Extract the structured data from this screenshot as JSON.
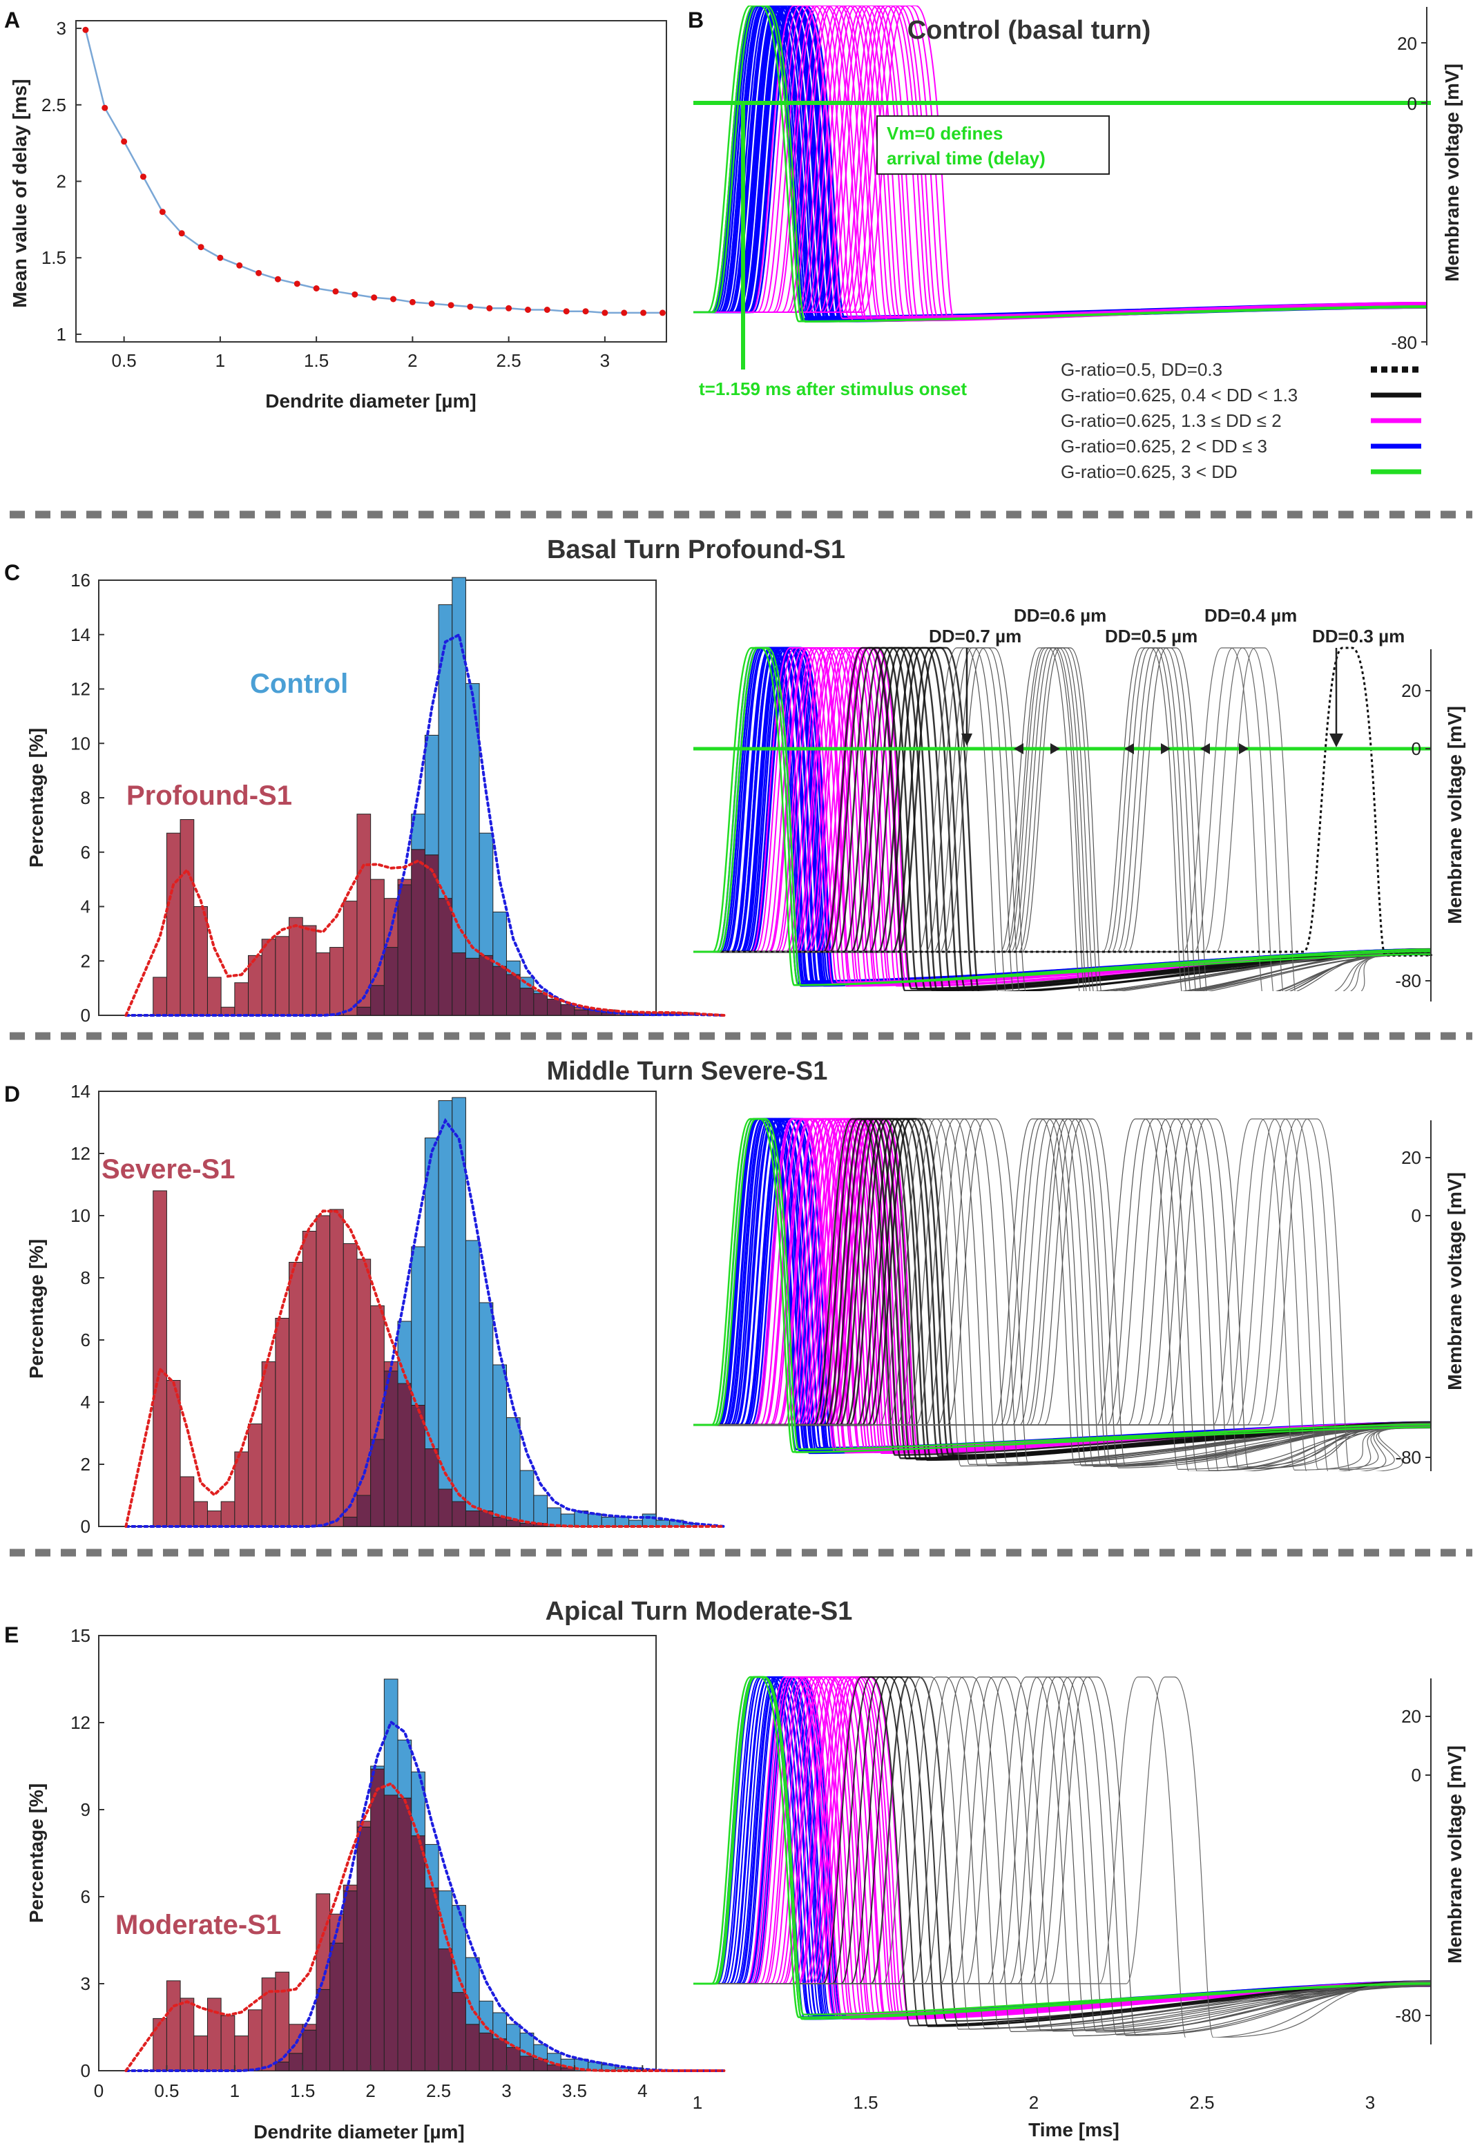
{
  "colors": {
    "control": "#4a9fd5",
    "s1": "#b5495b",
    "overlap": "#6e2a4e",
    "green": "#22dd22",
    "magenta": "#ff00ff",
    "blue": "#0000ff",
    "black": "#111111"
  },
  "panelA": {
    "label": "A",
    "xlabel": "Dendrite diameter [µm]",
    "ylabel": "Mean value of delay [ms]",
    "xticks": [
      "0.5",
      "1",
      "1.5",
      "2",
      "2.5",
      "3"
    ],
    "yticks": [
      "1",
      "1.5",
      "2",
      "2.5",
      "3"
    ]
  },
  "panelB": {
    "label": "B",
    "title": "Control (basal turn)",
    "ylabel": "Membrane voltage [mV]",
    "yticks": [
      "20",
      "0",
      "-80"
    ],
    "box_line1": "Vm=0 defines",
    "box_line2": "arrival time (delay)",
    "arrival": "t=1.159 ms after stimulus onset",
    "legend": [
      {
        "label": "G-ratio=0.5,      DD=0.3",
        "color": "#111111",
        "style": "dotted"
      },
      {
        "label": "G-ratio=0.625, 0.4 < DD < 1.3",
        "color": "#111111",
        "style": "solid"
      },
      {
        "label": "G-ratio=0.625, 1.3 ≤ DD ≤ 2",
        "color": "#ff00ff",
        "style": "solid"
      },
      {
        "label": "G-ratio=0.625, 2 < DD ≤ 3",
        "color": "#0000ff",
        "style": "solid"
      },
      {
        "label": "G-ratio=0.625, 3 < DD",
        "color": "#22dd22",
        "style": "solid"
      }
    ]
  },
  "panelC": {
    "label": "C",
    "title": "Basal Turn  Profound-S1",
    "ylabel": "Percentage [%]",
    "yticks": [
      "0",
      "2",
      "4",
      "6",
      "8",
      "10",
      "12",
      "14",
      "16"
    ],
    "control_label": "Control",
    "s1_label": "Profound-S1",
    "trace_ylabel": "Membrane voltage [mV]",
    "trace_yticks": [
      "20",
      "0",
      "-80"
    ],
    "dd": [
      "DD=0.7 µm",
      "DD=0.6 µm",
      "DD=0.5 µm",
      "DD=0.4 µm",
      "DD=0.3 µm"
    ]
  },
  "panelD": {
    "label": "D",
    "title": "Middle Turn  Severe-S1",
    "ylabel": "Percentage [%]",
    "yticks": [
      "0",
      "2",
      "4",
      "6",
      "8",
      "10",
      "12",
      "14"
    ],
    "s1_label": "Severe-S1",
    "trace_ylabel": "Membrane voltage [mV]",
    "trace_yticks": [
      "20",
      "0",
      "-80"
    ]
  },
  "panelE": {
    "label": "E",
    "title": "Apical Turn  Moderate-S1",
    "ylabel": "Percentage [%]",
    "yticks": [
      "0",
      "3",
      "6",
      "9",
      "12",
      "15"
    ],
    "s1_label": "Moderate-S1",
    "trace_ylabel": "Membrane voltage [mV]",
    "trace_yticks": [
      "20",
      "0",
      "-80"
    ],
    "xlabel": "Dendrite diameter [µm]",
    "xticks": [
      "0",
      "0.5",
      "1",
      "1.5",
      "2",
      "2.5",
      "3",
      "3.5",
      "4"
    ],
    "time_label": "Time [ms]",
    "time_ticks": [
      "1",
      "1.5",
      "2",
      "2.5",
      "3"
    ]
  },
  "chart_data": [
    {
      "type": "line",
      "id": "A",
      "title": "",
      "xlabel": "Dendrite diameter [µm]",
      "ylabel": "Mean value of delay [ms]",
      "xlim": [
        0.25,
        3.32
      ],
      "ylim": [
        0.95,
        3.05
      ],
      "x": [
        0.3,
        0.4,
        0.5,
        0.6,
        0.7,
        0.8,
        0.9,
        1.0,
        1.1,
        1.2,
        1.3,
        1.4,
        1.5,
        1.6,
        1.7,
        1.8,
        1.9,
        2.0,
        2.1,
        2.2,
        2.3,
        2.4,
        2.5,
        2.6,
        2.7,
        2.8,
        2.9,
        3.0,
        3.1,
        3.2,
        3.3
      ],
      "y": [
        2.99,
        2.48,
        2.26,
        2.03,
        1.8,
        1.66,
        1.57,
        1.5,
        1.45,
        1.4,
        1.36,
        1.33,
        1.3,
        1.28,
        1.26,
        1.24,
        1.23,
        1.21,
        1.2,
        1.19,
        1.18,
        1.17,
        1.17,
        1.16,
        1.16,
        1.15,
        1.15,
        1.14,
        1.14,
        1.14,
        1.14
      ]
    },
    {
      "type": "bar",
      "id": "C",
      "title": "Basal Turn  Profound-S1",
      "xlabel": "",
      "ylabel": "Percentage [%]",
      "xlim": [
        0,
        4.1
      ],
      "ylim": [
        0,
        16
      ],
      "bin_start": 0.4,
      "bin_width": 0.1,
      "series": [
        {
          "name": "Control",
          "values": [
            0,
            0,
            0,
            0,
            0,
            0,
            0,
            0,
            0,
            0,
            0,
            0,
            0,
            0,
            0,
            0.3,
            1.1,
            2.5,
            4.8,
            7.4,
            10.3,
            15.1,
            16.1,
            12.2,
            6.7,
            3.8,
            2.0,
            1.4,
            0.9,
            0.6,
            0.4,
            0.2,
            0.2,
            0.1,
            0,
            0.1,
            0,
            0,
            0,
            0.1
          ]
        },
        {
          "name": "Profound-S1",
          "values": [
            1.4,
            6.7,
            7.2,
            4.0,
            1.4,
            0.3,
            1.2,
            2.2,
            2.8,
            2.9,
            3.6,
            3.3,
            2.3,
            2.5,
            4.2,
            7.4,
            5.0,
            4.3,
            5.0,
            6.1,
            5.9,
            4.3,
            2.3,
            2.1,
            2.2,
            1.8,
            1.5,
            1.0,
            0.8,
            0.6,
            0.4,
            0.3,
            0.2,
            0.2,
            0.1,
            0.1,
            0.1,
            0.1,
            0.1,
            0.1
          ]
        }
      ]
    },
    {
      "type": "bar",
      "id": "D",
      "title": "Middle Turn  Severe-S1",
      "xlabel": "",
      "ylabel": "Percentage [%]",
      "xlim": [
        0,
        4.1
      ],
      "ylim": [
        0,
        14
      ],
      "bin_start": 0.4,
      "bin_width": 0.1,
      "series": [
        {
          "name": "Control",
          "values": [
            0,
            0,
            0,
            0,
            0,
            0,
            0,
            0,
            0,
            0,
            0,
            0,
            0,
            0,
            0.3,
            1.0,
            2.8,
            5.0,
            6.6,
            9.0,
            12.5,
            13.7,
            13.8,
            9.2,
            7.2,
            5.2,
            3.5,
            1.8,
            1.0,
            0.6,
            0.4,
            0.5,
            0.4,
            0.3,
            0.3,
            0.2,
            0.4,
            0.2,
            0.2,
            0.1
          ]
        },
        {
          "name": "Severe-S1",
          "values": [
            10.8,
            4.7,
            1.6,
            0.8,
            0.5,
            0.8,
            2.4,
            3.3,
            5.3,
            6.7,
            8.5,
            9.5,
            10.0,
            10.2,
            9.1,
            8.6,
            7.1,
            5.3,
            4.6,
            3.9,
            2.5,
            1.2,
            0.8,
            0.5,
            0.5,
            0.3,
            0.2,
            0.1,
            0.1,
            0,
            0,
            0,
            0,
            0,
            0,
            0,
            0,
            0,
            0,
            0
          ]
        }
      ]
    },
    {
      "type": "bar",
      "id": "E",
      "title": "Apical Turn  Moderate-S1",
      "xlabel": "Dendrite diameter [µm]",
      "ylabel": "Percentage [%]",
      "xlim": [
        0,
        4.1
      ],
      "ylim": [
        0,
        15
      ],
      "bin_start": 0.4,
      "bin_width": 0.1,
      "series": [
        {
          "name": "Control",
          "values": [
            0,
            0,
            0,
            0,
            0,
            0,
            0,
            0,
            0,
            0.3,
            0.6,
            1.4,
            2.8,
            4.4,
            6.2,
            8.4,
            10.5,
            13.5,
            11.4,
            10.3,
            7.8,
            6.2,
            5.7,
            3.9,
            2.4,
            2.0,
            1.6,
            1.3,
            0.9,
            0.6,
            0.4,
            0.4,
            0.3,
            0.2,
            0.1,
            0.1,
            0,
            0,
            0,
            0
          ]
        },
        {
          "name": "Moderate-S1",
          "values": [
            1.8,
            3.1,
            2.5,
            1.2,
            2.5,
            1.9,
            1.2,
            2.1,
            3.2,
            3.4,
            1.6,
            1.6,
            6.1,
            5.4,
            6.4,
            8.6,
            10.4,
            9.5,
            9.4,
            8.1,
            6.3,
            4.2,
            2.7,
            1.6,
            1.3,
            1.1,
            0.8,
            0.5,
            0.4,
            0.2,
            0.1,
            0,
            0,
            0,
            0,
            0,
            0,
            0,
            0,
            0
          ]
        }
      ]
    }
  ]
}
